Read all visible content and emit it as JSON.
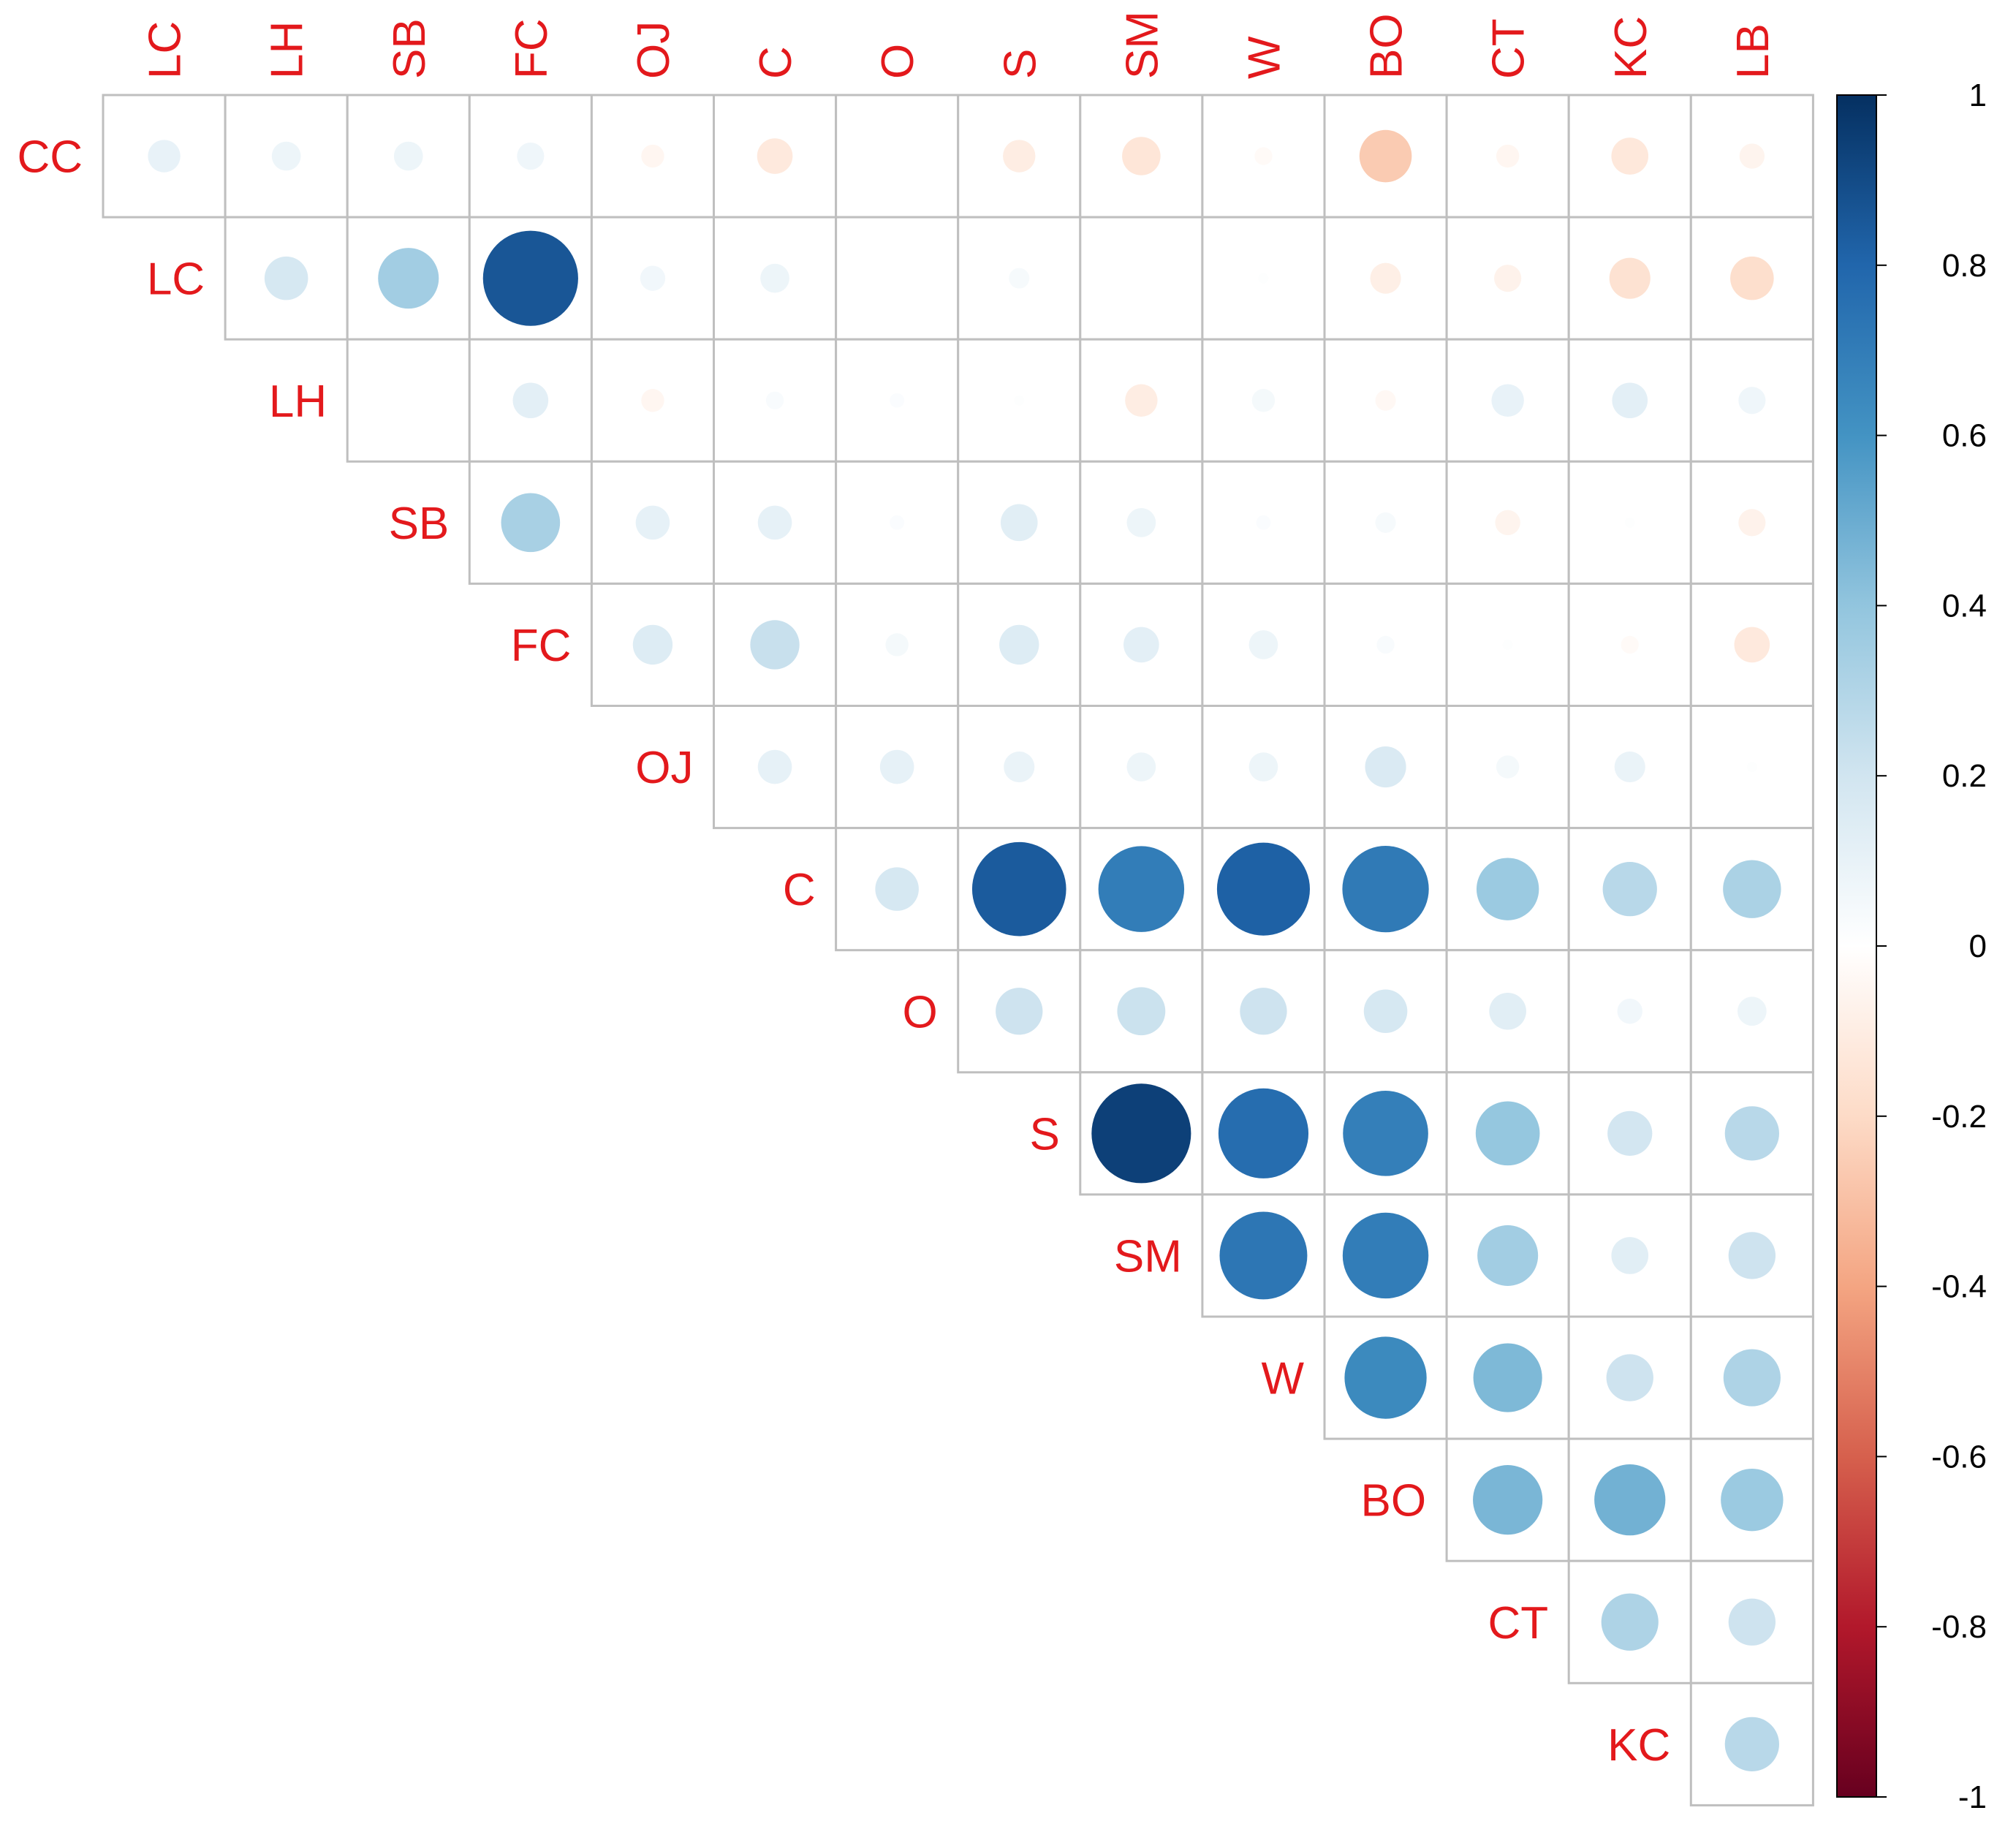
{
  "chart_data": {
    "type": "heatmap",
    "subtype": "correlation-upper-triangle",
    "row_labels": [
      "CC",
      "LC",
      "LH",
      "SB",
      "FC",
      "OJ",
      "C",
      "O",
      "S",
      "SM",
      "W",
      "BO",
      "CT",
      "KC"
    ],
    "col_labels": [
      "LC",
      "LH",
      "SB",
      "FC",
      "OJ",
      "C",
      "O",
      "S",
      "SM",
      "W",
      "BO",
      "CT",
      "KC",
      "LB"
    ],
    "values": [
      [
        0.1,
        0.08,
        0.08,
        0.07,
        -0.05,
        -0.12,
        0.0,
        -0.1,
        -0.14,
        -0.03,
        -0.26,
        -0.05,
        -0.13,
        -0.06
      ],
      [
        null,
        0.18,
        0.35,
        0.86,
        0.06,
        0.08,
        0.0,
        0.04,
        0.0,
        0.01,
        -0.09,
        -0.07,
        -0.16,
        -0.18
      ],
      [
        null,
        null,
        0.0,
        0.12,
        -0.05,
        0.03,
        0.02,
        0.01,
        -0.1,
        0.05,
        -0.04,
        0.1,
        0.12,
        0.07
      ],
      [
        null,
        null,
        null,
        0.33,
        0.11,
        0.11,
        0.02,
        0.13,
        0.08,
        0.02,
        0.04,
        -0.06,
        0.01,
        -0.07
      ],
      [
        null,
        null,
        null,
        null,
        0.15,
        0.23,
        0.05,
        0.15,
        0.12,
        0.08,
        0.03,
        0.01,
        -0.03,
        -0.12
      ],
      [
        null,
        null,
        null,
        null,
        null,
        0.11,
        0.11,
        0.09,
        0.08,
        0.08,
        0.16,
        0.05,
        0.09,
        0.01
      ],
      [
        null,
        null,
        null,
        null,
        null,
        null,
        0.18,
        0.84,
        0.7,
        0.82,
        0.71,
        0.37,
        0.28,
        0.32
      ],
      [
        null,
        null,
        null,
        null,
        null,
        null,
        null,
        0.21,
        0.22,
        0.21,
        0.18,
        0.13,
        0.06,
        0.08
      ],
      [
        null,
        null,
        null,
        null,
        null,
        null,
        null,
        null,
        0.94,
        0.77,
        0.69,
        0.39,
        0.19,
        0.28
      ],
      [
        null,
        null,
        null,
        null,
        null,
        null,
        null,
        null,
        null,
        0.73,
        0.7,
        0.35,
        0.13,
        0.21
      ],
      [
        null,
        null,
        null,
        null,
        null,
        null,
        null,
        null,
        null,
        null,
        0.64,
        0.45,
        0.21,
        0.31
      ],
      [
        null,
        null,
        null,
        null,
        null,
        null,
        null,
        null,
        null,
        null,
        null,
        0.46,
        0.48,
        0.37
      ],
      [
        null,
        null,
        null,
        null,
        null,
        null,
        null,
        null,
        null,
        null,
        null,
        null,
        0.31,
        0.21
      ],
      [
        null,
        null,
        null,
        null,
        null,
        null,
        null,
        null,
        null,
        null,
        null,
        null,
        null,
        0.28
      ]
    ],
    "colorbar": {
      "range": [
        -1,
        1
      ],
      "ticks": [
        "1",
        "0.8",
        "0.6",
        "0.4",
        "0.2",
        "0",
        "-0.2",
        "-0.4",
        "-0.6",
        "-0.8",
        "-1"
      ],
      "colors": [
        "#67001f",
        "#b2182b",
        "#d6604d",
        "#f4a582",
        "#fddbc7",
        "#ffffff",
        "#d1e5f0",
        "#92c5de",
        "#4393c3",
        "#2166ac",
        "#053061"
      ]
    },
    "title": "",
    "xlabel": "",
    "ylabel": ""
  },
  "colors": {
    "label": "#e3191c",
    "grid": "#bfbfbf"
  }
}
